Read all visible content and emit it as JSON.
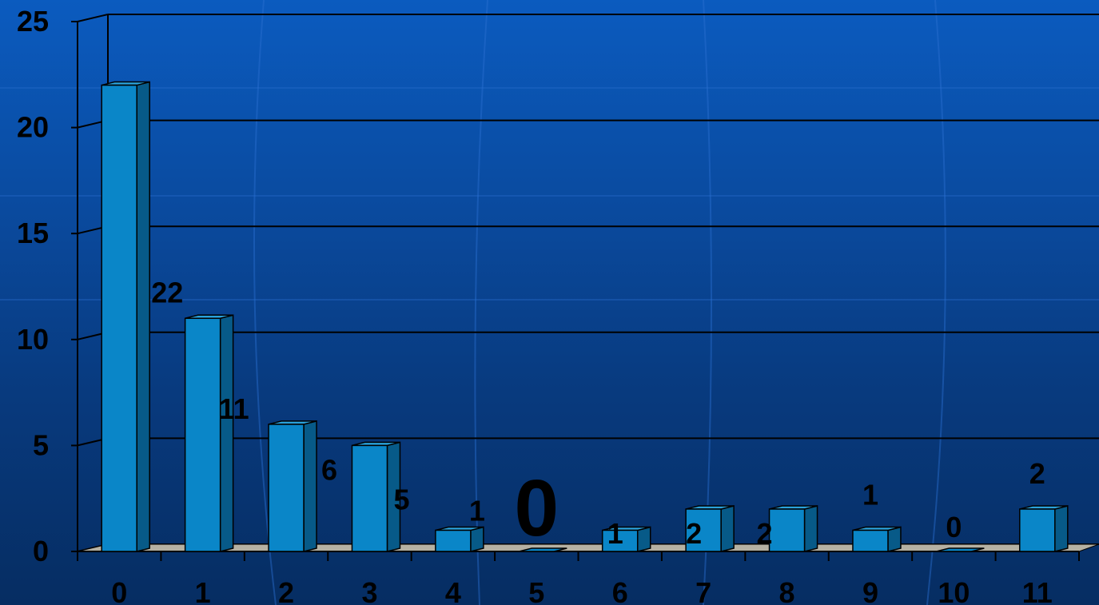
{
  "chart_data": {
    "type": "bar",
    "categories": [
      "0",
      "1",
      "2",
      "3",
      "4",
      "5",
      "6",
      "7",
      "8",
      "9",
      "10",
      "11"
    ],
    "values": [
      22,
      11,
      6,
      5,
      1,
      0,
      1,
      2,
      2,
      1,
      0,
      2
    ],
    "data_labels": [
      "22",
      "11",
      "6",
      "5",
      "1",
      "0",
      "1",
      "2",
      "2",
      "1",
      "0",
      "2"
    ],
    "ylim": [
      0,
      25
    ],
    "yticks": [
      "0",
      "5",
      "10",
      "15",
      "20",
      "25"
    ],
    "grid": true,
    "style": "3d-bar",
    "colors": {
      "bar_front": "#0a86c8",
      "bar_side": "#075a88",
      "bar_top": "#2aa2dc",
      "floor": "#b5b1a3",
      "gridline": "#000000",
      "background_top": "#0b5bbf",
      "background_bottom": "#062d62"
    }
  }
}
